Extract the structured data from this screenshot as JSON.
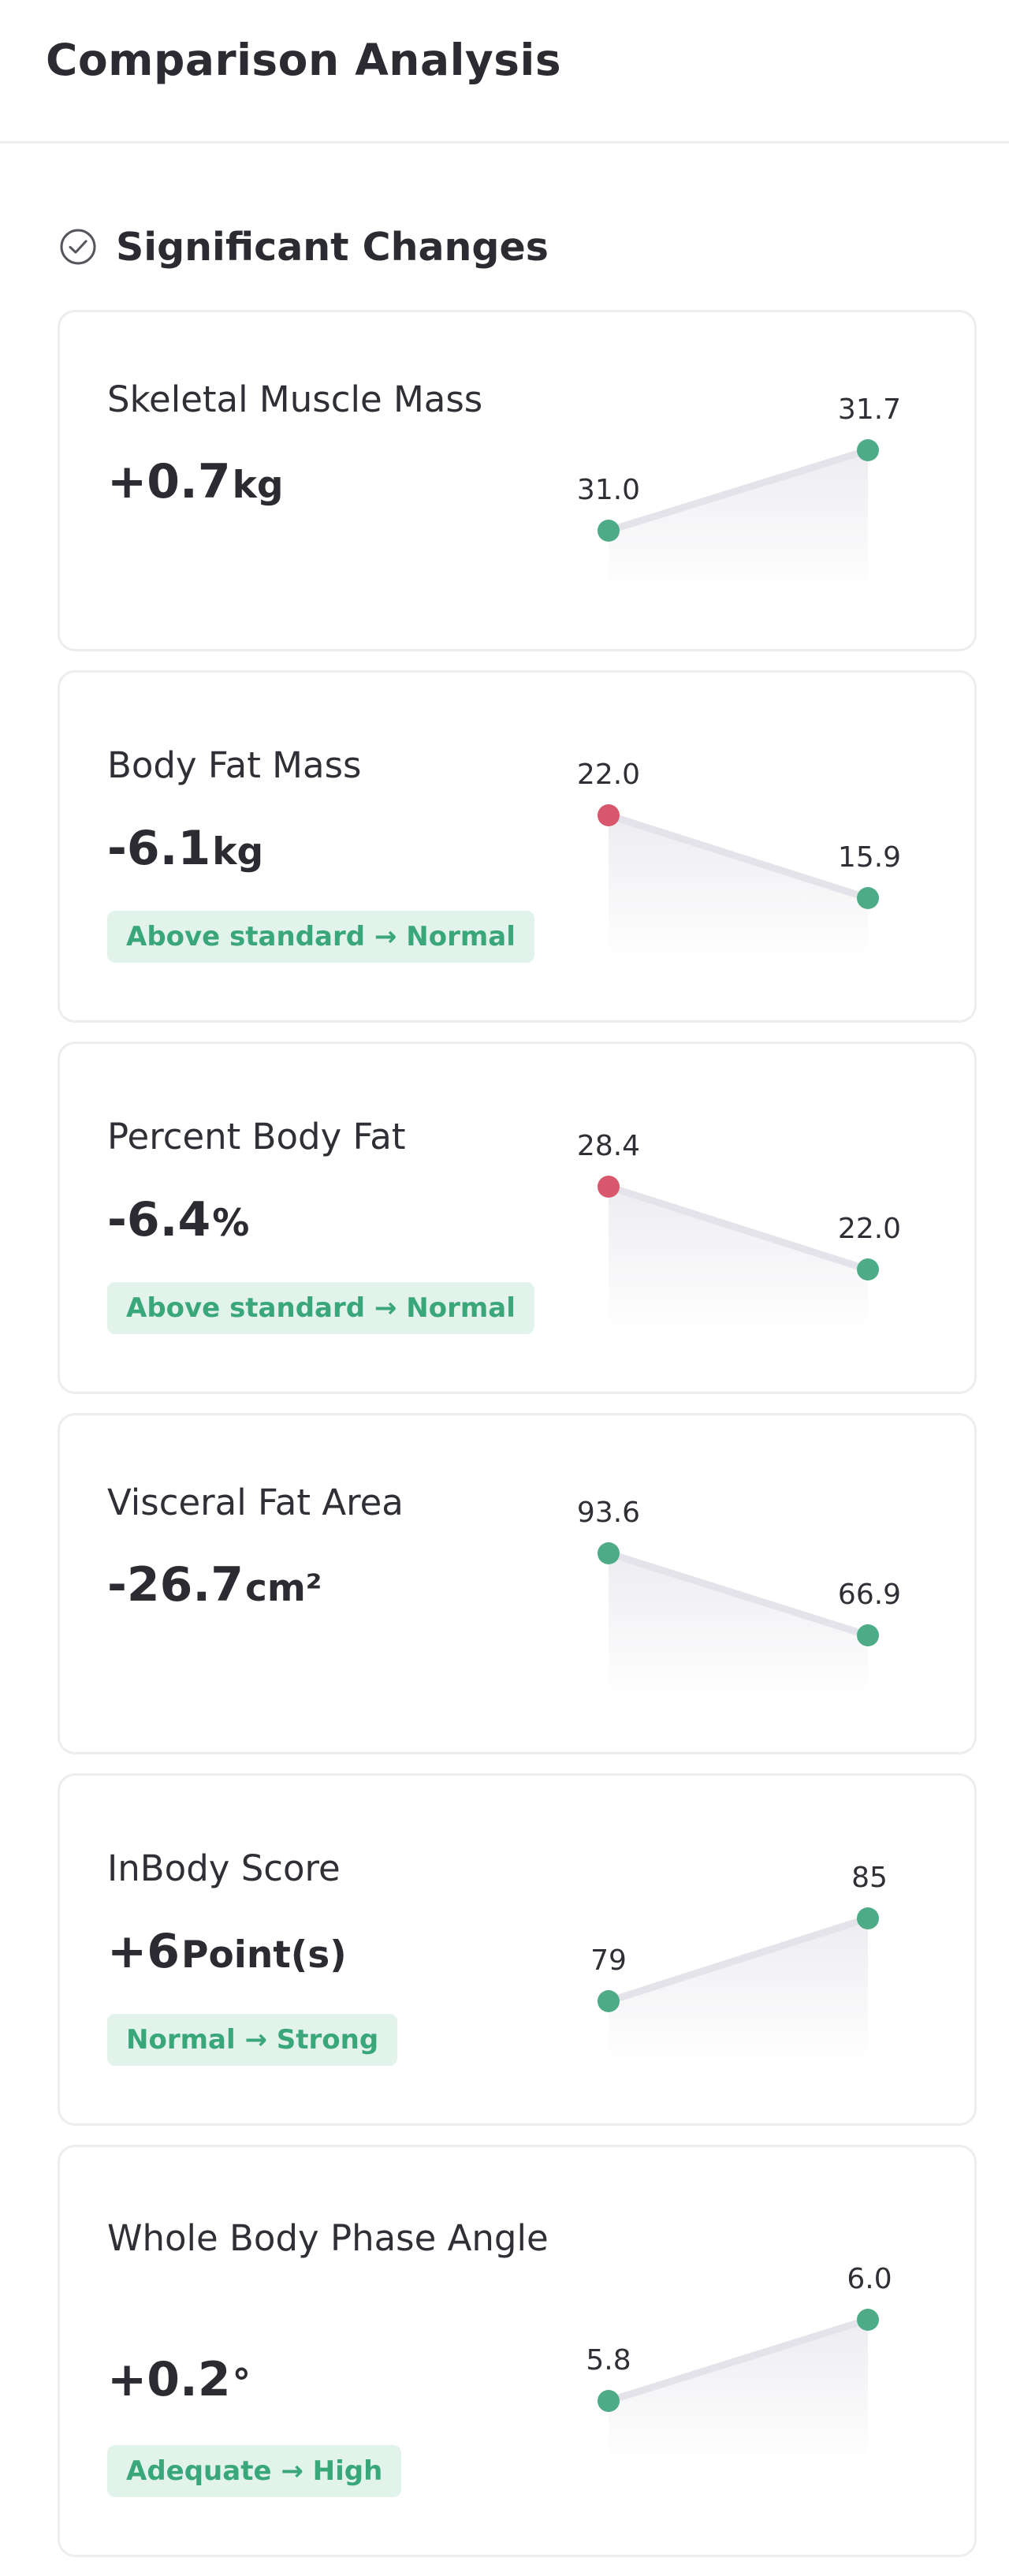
{
  "header": {
    "title": "Comparison Analysis"
  },
  "section": {
    "title": "Significant Changes",
    "icon": "check-circle-icon"
  },
  "colors": {
    "good": "#4dab87",
    "bad": "#d9576d",
    "badge_bg": "#e2f3ec",
    "badge_text": "#3aa77a"
  },
  "metrics": [
    {
      "name": "Skeletal Muscle Mass",
      "delta": "+0.7",
      "unit": "kg",
      "badge": "",
      "before": "31.0",
      "after": "31.7",
      "before_status": "good",
      "after_status": "good"
    },
    {
      "name": "Body Fat Mass",
      "delta": "-6.1",
      "unit": "kg",
      "badge": "Above standard → Normal",
      "before": "22.0",
      "after": "15.9",
      "before_status": "bad",
      "after_status": "good"
    },
    {
      "name": "Percent Body Fat",
      "delta": "-6.4",
      "unit": "%",
      "badge": "Above standard → Normal",
      "before": "28.4",
      "after": "22.0",
      "before_status": "bad",
      "after_status": "good"
    },
    {
      "name": "Visceral Fat Area",
      "delta": "-26.7",
      "unit": "cm²",
      "badge": "",
      "before": "93.6",
      "after": "66.9",
      "before_status": "good",
      "after_status": "good"
    },
    {
      "name": "InBody Score",
      "delta": "+6",
      "unit": "Point(s)",
      "badge": "Normal → Strong",
      "before": "79",
      "after": "85",
      "before_status": "good",
      "after_status": "good"
    },
    {
      "name": "Whole Body Phase Angle",
      "delta": "+0.2",
      "unit": "°",
      "badge": "Adequate → High",
      "before": "5.8",
      "after": "6.0",
      "before_status": "good",
      "after_status": "good"
    }
  ]
}
